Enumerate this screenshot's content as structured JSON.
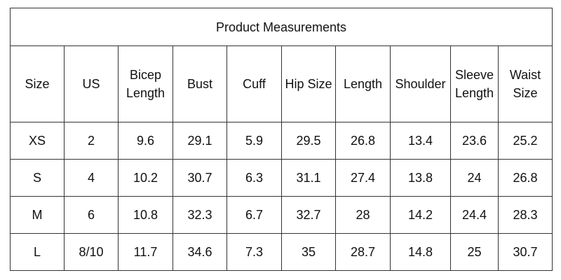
{
  "table": {
    "title": "Product Measurements",
    "header": [
      "Size",
      "US",
      "Bicep Length",
      "Bust",
      "Cuff",
      "Hip Size",
      "Length",
      "Shoulder",
      "Sleeve Length",
      "Waist Size"
    ],
    "rows": [
      [
        "XS",
        "2",
        "9.6",
        "29.1",
        "5.9",
        "29.5",
        "26.8",
        "13.4",
        "23.6",
        "25.2"
      ],
      [
        "S",
        "4",
        "10.2",
        "30.7",
        "6.3",
        "31.1",
        "27.4",
        "13.8",
        "24",
        "26.8"
      ],
      [
        "M",
        "6",
        "10.8",
        "32.3",
        "6.7",
        "32.7",
        "28",
        "14.2",
        "24.4",
        "28.3"
      ],
      [
        "L",
        "8/10",
        "11.7",
        "34.6",
        "7.3",
        "35",
        "28.7",
        "14.8",
        "25",
        "30.7"
      ]
    ]
  }
}
